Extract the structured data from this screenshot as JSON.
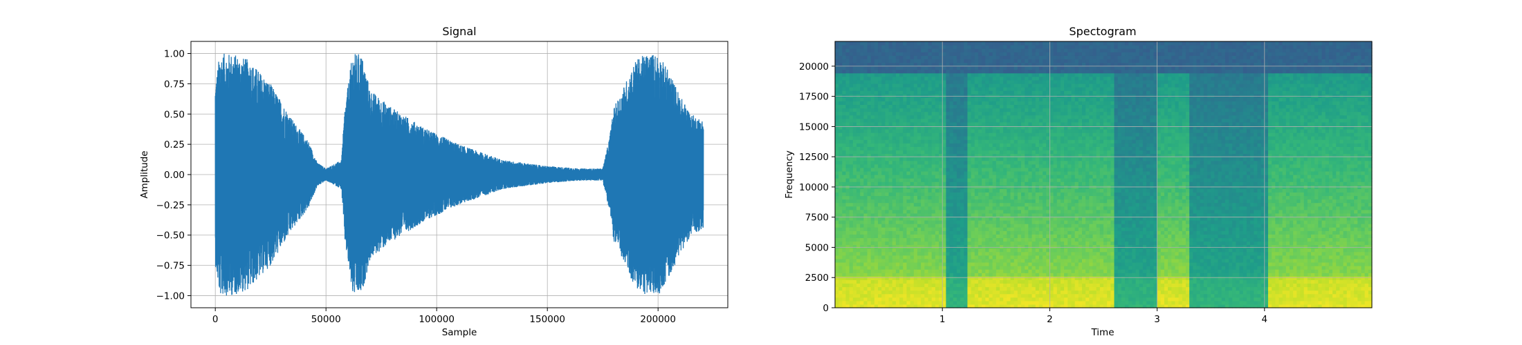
{
  "chart_data": [
    {
      "type": "line",
      "title": "Signal",
      "xlabel": "Sample",
      "ylabel": "Amplitude",
      "xlim": [
        -11000,
        231500
      ],
      "ylim": [
        -1.1,
        1.1
      ],
      "xticks": [
        0,
        50000,
        100000,
        150000,
        200000
      ],
      "xtick_labels": [
        "0",
        "50000",
        "100000",
        "150000",
        "200000"
      ],
      "yticks": [
        -1.0,
        -0.75,
        -0.5,
        -0.25,
        0.0,
        0.25,
        0.5,
        0.75,
        1.0
      ],
      "ytick_labels": [
        "−1.00",
        "−0.75",
        "−0.50",
        "−0.25",
        "0.00",
        "0.25",
        "0.50",
        "0.75",
        "1.00"
      ],
      "grid": true,
      "line_color": "#1f77b4",
      "envelope": {
        "x": [
          0,
          2000,
          8000,
          15000,
          25000,
          35000,
          42000,
          46000,
          50000,
          55000,
          57000,
          58500,
          62000,
          66000,
          70000,
          80000,
          95000,
          110000,
          130000,
          150000,
          165000,
          175000,
          178000,
          180000,
          185000,
          190000,
          195000,
          200000,
          205000,
          210000,
          215000,
          220500
        ],
        "amplitude": [
          0.75,
          1.0,
          1.0,
          0.95,
          0.75,
          0.45,
          0.28,
          0.1,
          0.05,
          0.1,
          0.12,
          0.55,
          1.0,
          1.0,
          0.7,
          0.55,
          0.38,
          0.25,
          0.12,
          0.07,
          0.05,
          0.05,
          0.3,
          0.55,
          0.75,
          0.95,
          1.0,
          1.0,
          0.85,
          0.65,
          0.5,
          0.45
        ]
      }
    },
    {
      "type": "heatmap",
      "title": "Spectogram",
      "xlabel": "Time",
      "ylabel": "Frequency",
      "xlim": [
        0,
        5
      ],
      "ylim": [
        0,
        22050
      ],
      "xticks": [
        1,
        2,
        3,
        4
      ],
      "xtick_labels": [
        "1",
        "2",
        "3",
        "4"
      ],
      "yticks": [
        0,
        2500,
        5000,
        7500,
        10000,
        12500,
        15000,
        17500,
        20000
      ],
      "ytick_labels": [
        "0",
        "2500",
        "5000",
        "7500",
        "10000",
        "12500",
        "15000",
        "17500",
        "20000"
      ],
      "grid": true,
      "colormap": "viridis",
      "loud_segments": [
        [
          0.0,
          1.02
        ],
        [
          1.25,
          2.6
        ],
        [
          3.0,
          3.3
        ],
        [
          4.02,
          5.0
        ]
      ],
      "quiet_segments": [
        [
          1.02,
          1.25
        ],
        [
          2.6,
          3.0
        ],
        [
          3.3,
          4.02
        ]
      ],
      "high_band_cutoff": 18500
    }
  ]
}
